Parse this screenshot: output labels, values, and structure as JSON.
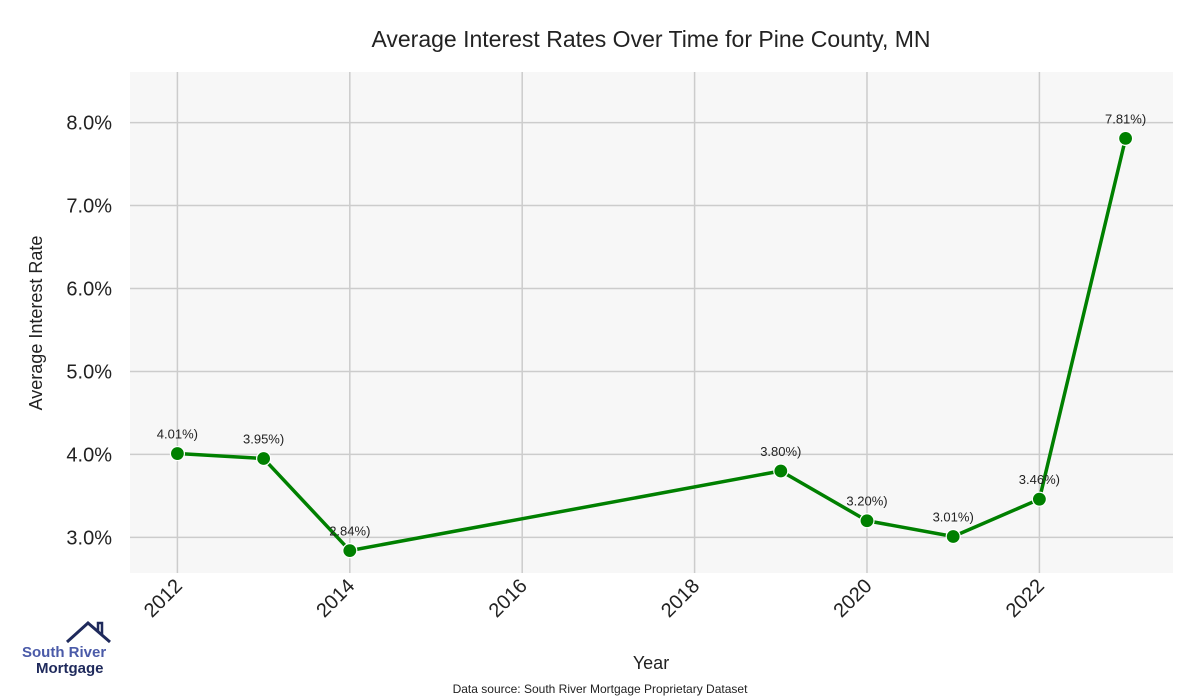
{
  "chart_data": {
    "type": "line",
    "title": "Average Interest Rates Over Time for Pine County, MN",
    "xlabel": "Year",
    "ylabel": "Average Interest Rate",
    "x": [
      2012,
      2013,
      2014,
      2019,
      2020,
      2021,
      2022,
      2023
    ],
    "series": [
      {
        "name": "Average Interest Rate",
        "values": [
          4.01,
          3.95,
          2.84,
          3.8,
          3.2,
          3.01,
          3.46,
          7.81
        ],
        "color": "#008000"
      }
    ],
    "data_labels": [
      "4.01%)",
      "3.95%)",
      "2.84%)",
      "3.80%)",
      "3.20%)",
      "3.01%)",
      "3.46%)",
      "7.81%)"
    ],
    "xticks": [
      2012,
      2014,
      2016,
      2018,
      2020,
      2022
    ],
    "xtick_labels": [
      "2012",
      "2014",
      "2016",
      "2018",
      "2020",
      "2022"
    ],
    "yticks": [
      3,
      4,
      5,
      6,
      7,
      8
    ],
    "ytick_labels": [
      "3.0%",
      "4.0%",
      "5.0%",
      "6.0%",
      "7.0%",
      "8.0%"
    ],
    "xlim": [
      2011.45,
      2023.55
    ],
    "ylim": [
      2.57,
      8.61
    ],
    "grid": true,
    "background": "#f7f7f7",
    "grid_color": "#cccccc"
  },
  "footer": {
    "source": "Data source: South River Mortgage Proprietary Dataset"
  },
  "logo": {
    "line1": "South River",
    "line2": "Mortgage"
  }
}
